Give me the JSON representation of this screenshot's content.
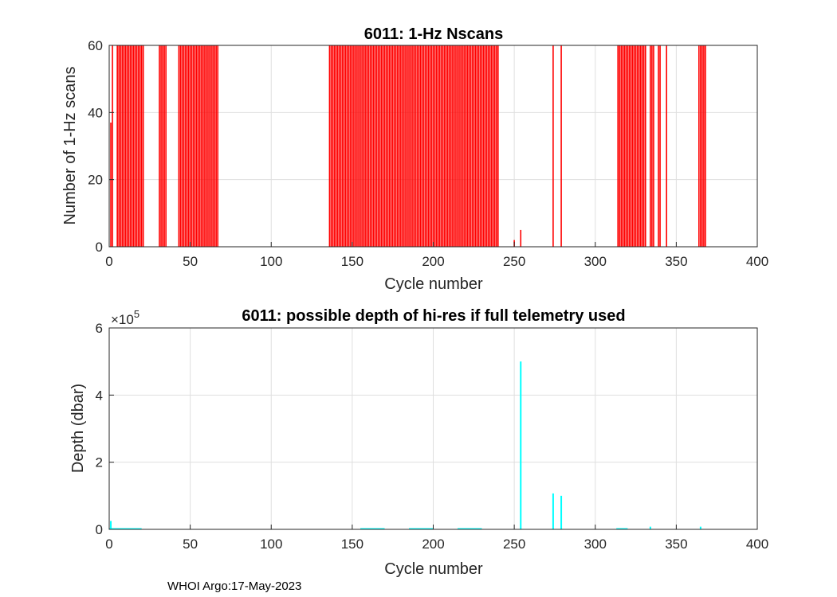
{
  "chart_data": [
    {
      "type": "bar",
      "title": "6011: 1-Hz Nscans",
      "xlabel": "Cycle number",
      "ylabel": "Number of 1-Hz scans",
      "xlim": [
        0,
        400
      ],
      "ylim": [
        0,
        60
      ],
      "xticks": [
        0,
        50,
        100,
        150,
        200,
        250,
        300,
        350,
        400
      ],
      "yticks": [
        0,
        20,
        40,
        60
      ],
      "grid": true,
      "color": "#ff0000",
      "bar_value": 60,
      "full_height_cycle_ranges": [
        [
          2,
          2
        ],
        [
          5,
          21
        ],
        [
          31,
          35
        ],
        [
          43,
          67
        ],
        [
          136,
          240
        ],
        [
          274,
          274
        ],
        [
          279,
          279
        ],
        [
          314,
          331
        ],
        [
          334,
          336
        ],
        [
          339,
          340
        ],
        [
          344,
          344
        ],
        [
          364,
          368
        ]
      ],
      "other_points": [
        {
          "x": 1,
          "y": 37
        },
        {
          "x": 254,
          "y": 5
        },
        {
          "x": 250,
          "y": 2
        }
      ]
    },
    {
      "type": "bar",
      "title": "6011: possible depth of hi-res if full telemetry used",
      "xlabel": "Cycle number",
      "ylabel": "Depth (dbar)",
      "xlim": [
        0,
        400
      ],
      "ylim": [
        0,
        6
      ],
      "y_exponent_label": "×10",
      "y_exponent_power": "5",
      "xticks": [
        0,
        50,
        100,
        150,
        200,
        250,
        300,
        350,
        400
      ],
      "yticks": [
        0,
        2,
        4,
        6
      ],
      "grid": true,
      "color": "#00ffff",
      "points": [
        {
          "x": 1,
          "y": 0.25
        },
        {
          "x": 254,
          "y": 5.0
        },
        {
          "x": 274,
          "y": 1.07
        },
        {
          "x": 279,
          "y": 1.0
        },
        {
          "x": 334,
          "y": 0.08
        },
        {
          "x": 365,
          "y": 0.08
        }
      ],
      "baseline_ranges": [
        [
          0,
          20
        ],
        [
          155,
          170
        ],
        [
          185,
          200
        ],
        [
          215,
          230
        ],
        [
          313,
          320
        ]
      ]
    }
  ],
  "footer": "WHOI Argo:17-May-2023"
}
